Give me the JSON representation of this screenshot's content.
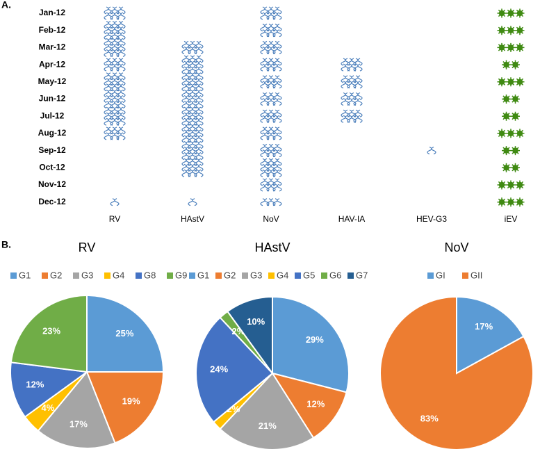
{
  "panel_labels": [
    "A.",
    "B."
  ],
  "chart_data": [
    {
      "type": "pictograph",
      "categories": [
        "Jan-12",
        "Feb-12",
        "Mar-12",
        "Apr-12",
        "May-12",
        "Jun-12",
        "Jul-12",
        "Aug-12",
        "Sep-12",
        "Oct-12",
        "Nov-12",
        "Dec-12"
      ],
      "series": [
        {
          "name": "RV",
          "color": "#4a7ebb",
          "marker": "helix",
          "values": [
            6,
            9,
            9,
            6,
            9,
            9,
            9,
            6,
            0,
            0,
            0,
            1
          ]
        },
        {
          "name": "HAstV",
          "color": "#4a7ebb",
          "marker": "helix",
          "values": [
            0,
            0,
            6,
            9,
            9,
            9,
            9,
            9,
            9,
            9,
            0,
            1
          ]
        },
        {
          "name": "NoV",
          "color": "#4a7ebb",
          "marker": "helix",
          "values": [
            6,
            6,
            6,
            6,
            6,
            6,
            6,
            6,
            6,
            9,
            6,
            3
          ]
        },
        {
          "name": "HAV-IA",
          "color": "#4a7ebb",
          "marker": "helix",
          "values": [
            0,
            0,
            0,
            6,
            6,
            6,
            6,
            0,
            0,
            0,
            0,
            0
          ]
        },
        {
          "name": "HEV-G3",
          "color": "#4a7ebb",
          "marker": "helix",
          "values": [
            0,
            0,
            0,
            0,
            0,
            0,
            0,
            0,
            1,
            0,
            0,
            0
          ]
        },
        {
          "name": "iEV",
          "color": "#3f8a12",
          "marker": "virus",
          "values": [
            3,
            3,
            3,
            2,
            3,
            2,
            2,
            3,
            2,
            2,
            3,
            3
          ]
        }
      ]
    },
    {
      "type": "pie",
      "title": "RV",
      "categories": [
        "G1",
        "G2",
        "G3",
        "G4",
        "G8",
        "G9"
      ],
      "values": [
        25,
        19,
        17,
        4,
        12,
        23
      ],
      "value_labels": [
        "25%",
        "19%",
        "17%",
        "4%",
        "12%",
        "23%"
      ],
      "colors": [
        "#5b9bd5",
        "#ed7d31",
        "#a5a5a5",
        "#ffc000",
        "#4472c4",
        "#70ad47"
      ]
    },
    {
      "type": "pie",
      "title": "HAstV",
      "categories": [
        "G1",
        "G2",
        "G3",
        "G4",
        "G5",
        "G6",
        "G7"
      ],
      "values": [
        29,
        12,
        21,
        2,
        24,
        2,
        10
      ],
      "value_labels": [
        "29%",
        "12%",
        "21%",
        "2%",
        "24%",
        "2%",
        "10%"
      ],
      "colors": [
        "#5b9bd5",
        "#ed7d31",
        "#a5a5a5",
        "#ffc000",
        "#4472c4",
        "#70ad47",
        "#255e91"
      ]
    },
    {
      "type": "pie",
      "title": "NoV",
      "categories": [
        "GI",
        "GII"
      ],
      "values": [
        17,
        83
      ],
      "value_labels": [
        "17%",
        "83%"
      ],
      "colors": [
        "#5b9bd5",
        "#ed7d31"
      ]
    }
  ]
}
